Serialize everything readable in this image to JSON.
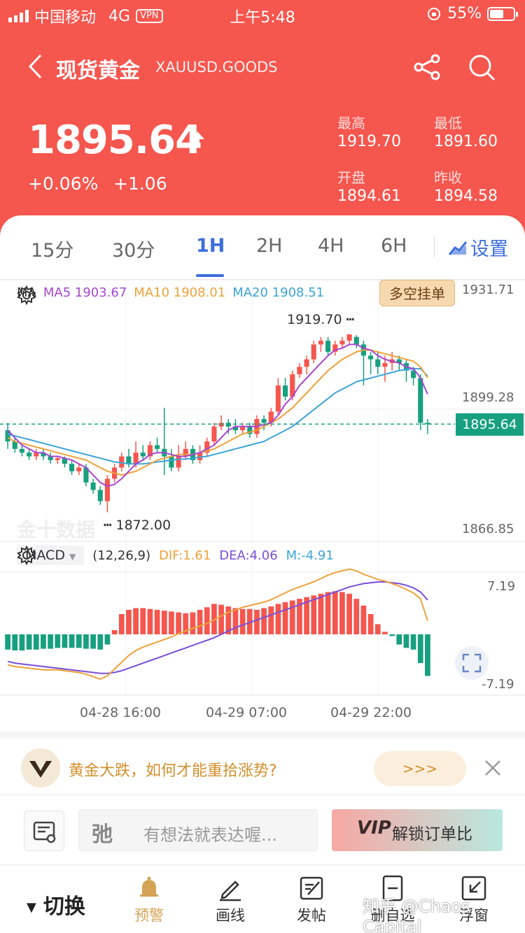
{
  "status_bar": {
    "carrier": "中国移动",
    "network": "4G",
    "vpn": "VPN",
    "time": "上午5:48",
    "battery": "55%"
  },
  "nav": {
    "back_icon": "chevron-left-icon",
    "title": "现货黄金",
    "subtitle": "XAUUSD.GOODS",
    "share_icon": "share-icon",
    "search_icon": "search-icon"
  },
  "quote": {
    "price": "1895.64",
    "change_pct": "+0.06%",
    "change_abs": "+1.06",
    "high_label": "最高",
    "high": "1919.70",
    "low_label": "最低",
    "low": "1891.60",
    "open_label": "开盘",
    "open": "1894.61",
    "prev_close_label": "昨收",
    "prev_close": "1894.58"
  },
  "tabs": {
    "items": [
      "15分",
      "30分",
      "1H",
      "2H",
      "4H",
      "6H"
    ],
    "active": "1H",
    "settings_label": "设置"
  },
  "chart": {
    "ma_label": "MA",
    "ma5": "MA5 1903.67",
    "ma10": "MA10 1908.01",
    "ma20": "MA20 1908.51",
    "order_btn": "多空挂单",
    "y_top": "1931.71",
    "y_mid": "1899.28",
    "y_bottom": "1866.85",
    "current_price": "1895.64",
    "high_annot": "1919.70",
    "low_annot": "1872.00",
    "watermark": "金十数据",
    "macd_label": "MACD",
    "macd_params": "(12,26,9)",
    "dif": "DIF:1.61",
    "dea": "DEA:4.06",
    "m": "M:-4.91",
    "macd_top": "7.19",
    "macd_bottom": "-7.19",
    "times": [
      "04-28 16:00",
      "04-29 07:00",
      "04-29 22:00"
    ],
    "colors": {
      "up": "#f5564e",
      "down": "#17a07f",
      "ma5": "#a845d0",
      "ma10": "#eda23a",
      "ma20": "#3ba4d8"
    }
  },
  "chart_data": {
    "type": "candlestick",
    "ylim": [
      1866.85,
      1931.71
    ],
    "candles": [
      [
        1894,
        1891,
        1896,
        1889
      ],
      [
        1891,
        1889,
        1892,
        1888
      ],
      [
        1889,
        1888,
        1890,
        1887
      ],
      [
        1888,
        1887,
        1889,
        1886
      ],
      [
        1887,
        1888,
        1889,
        1886
      ],
      [
        1888,
        1887,
        1889,
        1886
      ],
      [
        1887,
        1886,
        1888,
        1885
      ],
      [
        1886,
        1886.5,
        1887,
        1885
      ],
      [
        1886.5,
        1885,
        1887,
        1884
      ],
      [
        1885,
        1883,
        1886,
        1882
      ],
      [
        1883,
        1884,
        1885,
        1882
      ],
      [
        1884,
        1880,
        1885,
        1879
      ],
      [
        1880,
        1878,
        1881,
        1877
      ],
      [
        1878,
        1875,
        1879,
        1874
      ],
      [
        1875,
        1881,
        1882,
        1872
      ],
      [
        1881,
        1884,
        1885,
        1880
      ],
      [
        1884,
        1887,
        1888,
        1883
      ],
      [
        1887,
        1885,
        1889,
        1884
      ],
      [
        1885,
        1888,
        1891,
        1884
      ],
      [
        1888,
        1887,
        1890,
        1886
      ],
      [
        1887,
        1890,
        1891,
        1886
      ],
      [
        1890,
        1889,
        1892,
        1888
      ],
      [
        1889,
        1887,
        1900,
        1882
      ],
      [
        1887,
        1884,
        1889,
        1883
      ],
      [
        1884,
        1887,
        1890,
        1883
      ],
      [
        1887,
        1889,
        1891,
        1886
      ],
      [
        1889,
        1886,
        1890,
        1885
      ],
      [
        1886,
        1888,
        1890,
        1885
      ],
      [
        1888,
        1891,
        1892,
        1887
      ],
      [
        1891,
        1895,
        1896,
        1890
      ],
      [
        1895,
        1896,
        1898,
        1894
      ],
      [
        1896,
        1895,
        1897,
        1893
      ],
      [
        1895,
        1894,
        1897,
        1893
      ],
      [
        1894,
        1895,
        1896,
        1893
      ],
      [
        1895,
        1893,
        1896,
        1892
      ],
      [
        1893,
        1897,
        1898,
        1892
      ],
      [
        1897,
        1896,
        1898,
        1894
      ],
      [
        1896,
        1899,
        1900,
        1895
      ],
      [
        1899,
        1906,
        1908,
        1898
      ],
      [
        1906,
        1903,
        1908,
        1902
      ],
      [
        1903,
        1909,
        1910,
        1902
      ],
      [
        1909,
        1911,
        1912,
        1908
      ],
      [
        1911,
        1913,
        1914,
        1909
      ],
      [
        1913,
        1917,
        1918,
        1912
      ],
      [
        1917,
        1918,
        1919,
        1915
      ],
      [
        1918,
        1915,
        1919,
        1914
      ],
      [
        1915,
        1917,
        1918,
        1914
      ],
      [
        1917,
        1918,
        1919,
        1916
      ],
      [
        1918,
        1919.7,
        1919.7,
        1917
      ],
      [
        1919,
        1917,
        1919.5,
        1916
      ],
      [
        1917,
        1914,
        1918,
        1906
      ],
      [
        1914,
        1913,
        1915,
        1909
      ],
      [
        1913,
        1911,
        1915,
        1909
      ],
      [
        1911,
        1912,
        1914,
        1907
      ],
      [
        1912,
        1913,
        1915,
        1910
      ],
      [
        1913,
        1912,
        1914,
        1910
      ],
      [
        1912,
        1910,
        1913,
        1907
      ],
      [
        1910,
        1908,
        1911,
        1906
      ],
      [
        1908,
        1896,
        1909,
        1894
      ],
      [
        1896,
        1895.64,
        1897,
        1893
      ]
    ],
    "ma5": [
      1894,
      1892,
      1890,
      1889,
      1888,
      1888,
      1887,
      1887,
      1886.5,
      1886,
      1885,
      1884,
      1882,
      1880,
      1879,
      1879.5,
      1881,
      1883,
      1885,
      1886,
      1887.5,
      1888,
      1888,
      1887.5,
      1887,
      1887,
      1887.5,
      1888,
      1889,
      1890,
      1892,
      1894,
      1895,
      1895,
      1895,
      1895,
      1895.5,
      1896,
      1898,
      1901,
      1903,
      1906,
      1908,
      1910,
      1912,
      1914,
      1915.5,
      1916,
      1917,
      1917,
      1916,
      1915.5,
      1914,
      1913,
      1912.5,
      1912,
      1911,
      1910.5,
      1908,
      1903.67
    ],
    "ma10": [
      1892,
      1891,
      1890.5,
      1890,
      1889.5,
      1889,
      1888.5,
      1888,
      1887.5,
      1887,
      1886.5,
      1886,
      1885,
      1884,
      1883,
      1882.5,
      1882,
      1882.5,
      1883,
      1884,
      1885,
      1886,
      1886.5,
      1887,
      1887.5,
      1887.5,
      1887.5,
      1888,
      1888.5,
      1889,
      1890,
      1891,
      1892,
      1893,
      1893.5,
      1894,
      1895,
      1896,
      1897,
      1898.5,
      1900,
      1902,
      1904,
      1906,
      1908,
      1910,
      1911.5,
      1913,
      1914,
      1915,
      1915.5,
      1915.5,
      1915,
      1914.5,
      1914,
      1913.5,
      1913,
      1912.5,
      1911,
      1908.01
    ],
    "ma20": [
      1893,
      1892.5,
      1892,
      1891.5,
      1891,
      1890.5,
      1890,
      1889.5,
      1889,
      1888.5,
      1888,
      1887.5,
      1887,
      1886.5,
      1886,
      1885.5,
      1885.3,
      1885,
      1885,
      1885,
      1885.2,
      1885.5,
      1885.7,
      1886,
      1886.2,
      1886.3,
      1886.5,
      1886.8,
      1887,
      1887.5,
      1888,
      1888.5,
      1889,
      1889.5,
      1890,
      1890.5,
      1891,
      1892,
      1893,
      1894,
      1895,
      1896.5,
      1898,
      1899.5,
      1901,
      1902.5,
      1904,
      1905,
      1906,
      1907,
      1907.5,
      1908,
      1908.5,
      1909,
      1909.5,
      1910,
      1910.3,
      1910.5,
      1910.5,
      1908.51
    ],
    "macd": {
      "ylim": [
        -7.19,
        7.19
      ],
      "hist": [
        -1.8,
        -1.9,
        -1.9,
        -1.8,
        -1.8,
        -1.7,
        -1.7,
        -1.6,
        -1.6,
        -1.6,
        -1.6,
        -1.7,
        -1.7,
        -1.8,
        -1.2,
        0.5,
        2.4,
        2.9,
        3.1,
        3.1,
        3.0,
        2.9,
        2.8,
        2.7,
        2.6,
        2.5,
        2.6,
        2.9,
        3.2,
        3.6,
        3.5,
        3.3,
        3.1,
        3.0,
        3.0,
        2.9,
        3.1,
        3.3,
        3.6,
        3.8,
        4.0,
        4.2,
        4.4,
        4.6,
        4.8,
        5.0,
        5.1,
        5.0,
        4.8,
        4.2,
        3.4,
        2.4,
        1.2,
        0.3,
        -0.2,
        -1.2,
        -1.6,
        -1.8,
        -3.4,
        -4.91
      ],
      "dif": [
        -3.6,
        -3.8,
        -3.9,
        -4.0,
        -4.1,
        -4.2,
        -4.2,
        -4.2,
        -4.3,
        -4.4,
        -4.5,
        -4.7,
        -5.0,
        -5.3,
        -4.9,
        -4.1,
        -3.3,
        -2.5,
        -1.9,
        -1.5,
        -1.2,
        -0.9,
        -0.6,
        -0.3,
        0.1,
        0.4,
        0.7,
        1.0,
        1.3,
        1.7,
        2.2,
        2.6,
        2.9,
        3.2,
        3.4,
        3.6,
        3.8,
        4.1,
        4.5,
        4.9,
        5.3,
        5.6,
        5.9,
        6.2,
        6.6,
        7.0,
        7.3,
        7.5,
        7.7,
        7.5,
        7.1,
        6.8,
        6.5,
        6.3,
        6.0,
        5.7,
        5.3,
        4.9,
        4.2,
        1.61
      ],
      "dea": [
        -3.2,
        -3.4,
        -3.5,
        -3.6,
        -3.7,
        -3.8,
        -3.9,
        -4.0,
        -4.1,
        -4.2,
        -4.3,
        -4.4,
        -4.5,
        -4.6,
        -4.6,
        -4.5,
        -4.3,
        -4.0,
        -3.7,
        -3.4,
        -3.1,
        -2.8,
        -2.5,
        -2.2,
        -1.9,
        -1.6,
        -1.3,
        -1.0,
        -0.7,
        -0.4,
        0.0,
        0.4,
        0.8,
        1.1,
        1.4,
        1.7,
        2.0,
        2.3,
        2.6,
        2.9,
        3.2,
        3.5,
        3.8,
        4.1,
        4.4,
        4.7,
        5.0,
        5.3,
        5.6,
        5.8,
        6.0,
        6.1,
        6.2,
        6.2,
        6.1,
        6.0,
        5.8,
        5.5,
        5.0,
        4.06
      ]
    }
  },
  "ad": {
    "logo_icon": "jin10-v-logo-icon",
    "text": "黄金大跌，如何才能重拾涨势?",
    "button": ">>>",
    "close_icon": "close-icon"
  },
  "comment": {
    "doc_icon": "document-settings-icon",
    "badge": "弛",
    "placeholder": "有想法就表达喔...",
    "vip": "VIP",
    "vip_label": "解锁订单比"
  },
  "bottom_bar": {
    "switch_label": "切换",
    "items": [
      {
        "label": "预警",
        "icon": "bell-icon"
      },
      {
        "label": "画线",
        "icon": "pen-icon"
      },
      {
        "label": "发帖",
        "icon": "edit-post-icon"
      },
      {
        "label": "删自选",
        "icon": "remove-favorite-icon"
      },
      {
        "label": "浮窗",
        "icon": "float-window-icon"
      }
    ],
    "credit": "知乎 @Chaos Capital"
  }
}
